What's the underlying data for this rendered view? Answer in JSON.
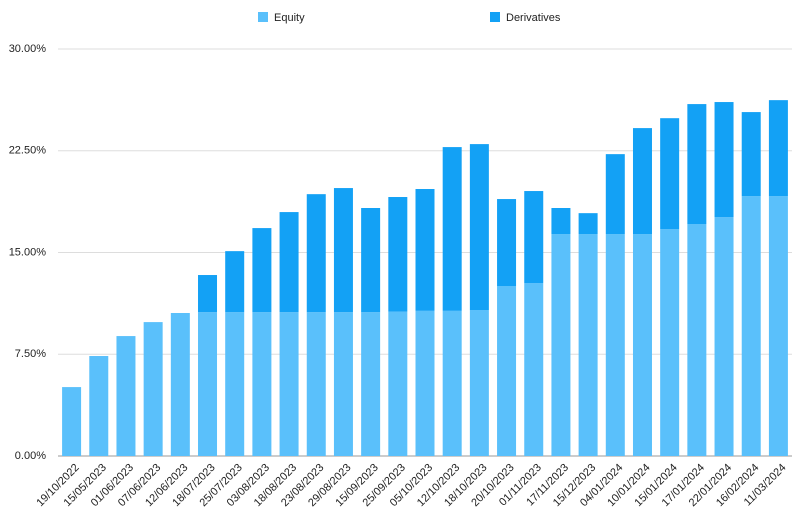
{
  "chart_data": {
    "type": "stacked-bar",
    "categories": [
      "19/10/2022",
      "15/05/2023",
      "01/06/2023",
      "07/06/2023",
      "12/06/2023",
      "18/07/2023",
      "25/07/2023",
      "03/08/2023",
      "18/08/2023",
      "23/08/2023",
      "29/08/2023",
      "15/09/2023",
      "25/09/2023",
      "05/10/2023",
      "12/10/2023",
      "18/10/2023",
      "20/10/2023",
      "01/11/2023",
      "17/11/2023",
      "15/12/2023",
      "04/01/2024",
      "10/01/2024",
      "15/01/2024",
      "17/01/2024",
      "22/01/2024",
      "16/02/2024",
      "11/03/2024"
    ],
    "series": [
      {
        "name": "Equity",
        "color": "#5ac0fb",
        "values": [
          5.08,
          7.37,
          8.84,
          9.87,
          10.54,
          10.6,
          10.6,
          10.6,
          10.6,
          10.6,
          10.6,
          10.6,
          10.64,
          10.7,
          10.7,
          10.76,
          12.53,
          12.75,
          16.36,
          16.36,
          16.36,
          16.36,
          16.73,
          17.1,
          17.6,
          19.16,
          19.16
        ]
      },
      {
        "name": "Derivatives",
        "color": "#13a1f5",
        "values": [
          0,
          0,
          0,
          0,
          0,
          2.74,
          4.5,
          6.2,
          7.38,
          8.7,
          9.15,
          7.68,
          8.45,
          8.98,
          12.07,
          12.23,
          6.41,
          6.78,
          1.92,
          1.54,
          5.89,
          7.81,
          8.17,
          8.84,
          8.49,
          6.19,
          7.07
        ]
      }
    ],
    "ylim": [
      0,
      30
    ],
    "yticks": [
      {
        "value": 0,
        "label": "0.00%"
      },
      {
        "value": 7.5,
        "label": "7.50%"
      },
      {
        "value": 15,
        "label": "15.00%"
      },
      {
        "value": 22.5,
        "label": "22.50%"
      },
      {
        "value": 30,
        "label": "30.00%"
      }
    ],
    "grid": true
  }
}
